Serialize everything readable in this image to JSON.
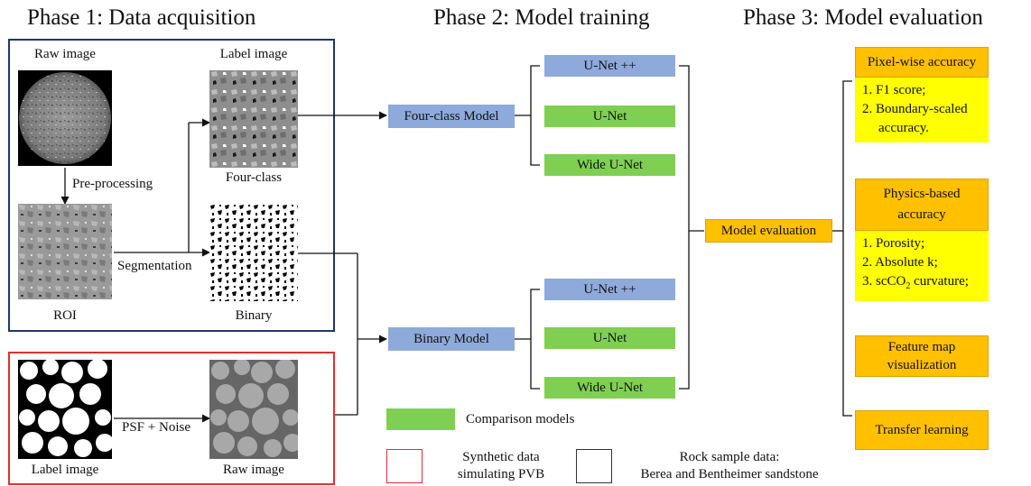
{
  "phases": {
    "p1": "Phase 1: Data acquisition",
    "p2": "Phase 2: Model training",
    "p3": "Phase 3: Model evaluation"
  },
  "phase1": {
    "raw_image": "Raw image",
    "label_image": "Label image",
    "pre_processing": "Pre-processing",
    "four_class": "Four-class",
    "segmentation": "Segmentation",
    "roi": "ROI",
    "binary": "Binary",
    "synthetic_label": "Label image",
    "psf_noise": "PSF + Noise",
    "synthetic_raw": "Raw image"
  },
  "phase2": {
    "four_class_model": "Four-class Model",
    "binary_model": "Binary Model",
    "top_models": [
      "U-Net ++",
      "U-Net",
      "Wide U-Net"
    ],
    "bottom_models": [
      "U-Net ++",
      "U-Net",
      "Wide U-Net"
    ],
    "model_evaluation": "Model evaluation"
  },
  "phase3": {
    "pixel_title": "Pixel-wise accuracy",
    "pixel_items": [
      "1. F1 score;",
      "2. Boundary-scaled",
      "accuracy."
    ],
    "physics_title_1": "Physics-based",
    "physics_title_2": "accuracy",
    "physics_items": [
      "1. Porosity;",
      "2. Absolute k;",
      "3. scCO",
      "2",
      " curvature;"
    ],
    "feature_1": "Feature map",
    "feature_2": "visualization",
    "transfer": "Transfer learning"
  },
  "legend": {
    "comparison": "Comparison models",
    "synthetic_1": "Synthetic data",
    "synthetic_2": "simulating PVB",
    "rock_1": "Rock sample data:",
    "rock_2": "Berea and Bentheimer sandstone"
  },
  "colors": {
    "blue_box": "#8eaadb",
    "green_box": "#7fcf52",
    "orange_box": "#ffc000",
    "yellow_box": "#ffff00",
    "frame_blue": "#1f3864",
    "frame_red": "#e03030"
  }
}
